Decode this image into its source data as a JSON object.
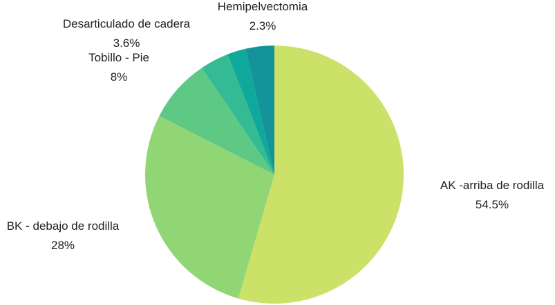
{
  "chart_data": {
    "type": "pie",
    "title": "",
    "slices": [
      {
        "label": "AK -arriba de rodilla",
        "value": 54.5,
        "value_label": "54.5%",
        "color": "#cbe168"
      },
      {
        "label": "BK - debajo de rodilla",
        "value": 28,
        "value_label": "28%",
        "color": "#91d674"
      },
      {
        "label": "Tobillo - Pie",
        "value": 8,
        "value_label": "8%",
        "color": "#5ec985"
      },
      {
        "label": "Desarticulado de cadera",
        "value": 3.6,
        "value_label": "3.6%",
        "color": "#35bb93"
      },
      {
        "label": "Hemipelvectomia",
        "value": 2.3,
        "value_label": "2.3%",
        "color": "#0ea99a"
      },
      {
        "label": "",
        "value": 3.6,
        "value_label": "",
        "color": "#14939b"
      }
    ],
    "start_angle_deg": 0,
    "direction": "clockwise",
    "legend": "none"
  }
}
